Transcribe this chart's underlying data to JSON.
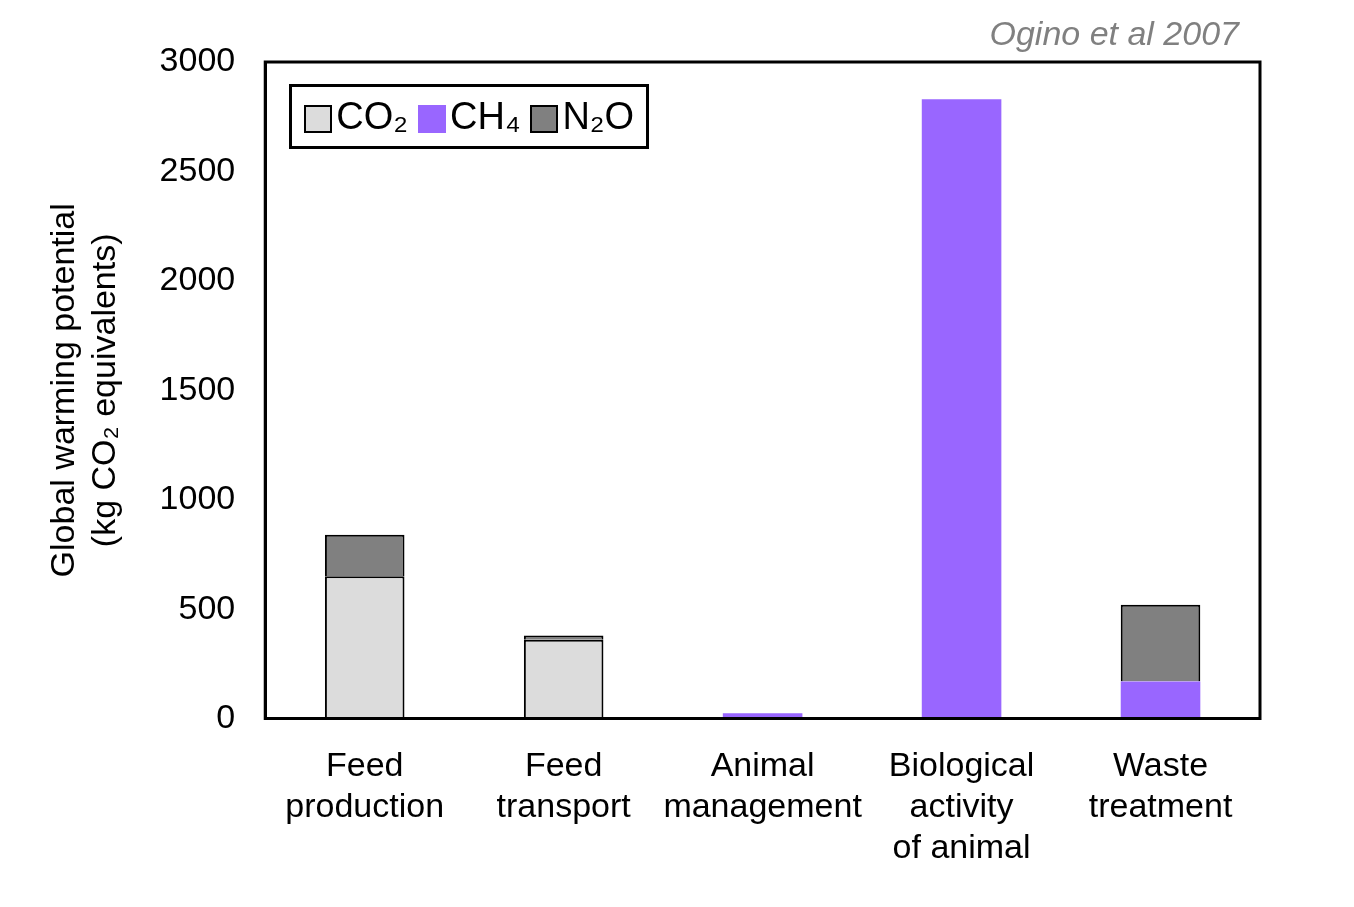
{
  "chart_data": {
    "type": "bar",
    "stacked": true,
    "ylabel": "Global warming potential\n(kg CO₂ equivalents)",
    "annotations": [
      "Ogino et al 2007"
    ],
    "categories": [
      "Feed\nproduction",
      "Feed\ntransport",
      "Animal\nmanagement",
      "Biological\nactivity\nof animal",
      "Waste\ntreatment"
    ],
    "series": [
      {
        "name": "CO₂",
        "color": "#dcdcdc",
        "values": [
          650,
          360,
          null,
          0,
          0
        ]
      },
      {
        "name": "CH₄",
        "color": "#9966ff",
        "values": [
          0,
          0,
          25,
          2830,
          170
        ]
      },
      {
        "name": "N₂O",
        "color": "#808080",
        "values": [
          190,
          20,
          0,
          0,
          350
        ]
      }
    ],
    "ylim": [
      0,
      3000
    ],
    "yticks": [
      0,
      500,
      1000,
      1500,
      2000,
      2500,
      3000
    ],
    "legend": "top left",
    "grid": false
  }
}
